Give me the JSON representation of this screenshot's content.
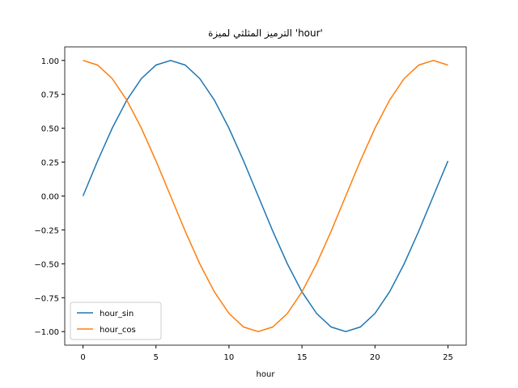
{
  "chart_data": {
    "type": "line",
    "title": "الترميز المثلثي لميزة 'hour'",
    "xlabel": "hour",
    "x": [
      0,
      1,
      2,
      3,
      4,
      5,
      6,
      7,
      8,
      9,
      10,
      11,
      12,
      13,
      14,
      15,
      16,
      17,
      18,
      19,
      20,
      21,
      22,
      23,
      24,
      25
    ],
    "series": [
      {
        "name": "hour_sin",
        "color": "#1f77b4",
        "values": [
          0,
          0.259,
          0.5,
          0.707,
          0.866,
          0.966,
          1,
          0.966,
          0.866,
          0.707,
          0.5,
          0.259,
          0,
          -0.259,
          -0.5,
          -0.707,
          -0.866,
          -0.966,
          -1,
          -0.966,
          -0.866,
          -0.707,
          -0.5,
          -0.259,
          0,
          0.259
        ]
      },
      {
        "name": "hour_cos",
        "color": "#ff7f0e",
        "values": [
          1,
          0.966,
          0.866,
          0.707,
          0.5,
          0.259,
          0,
          -0.259,
          -0.5,
          -0.707,
          -0.866,
          -0.966,
          -1,
          -0.966,
          -0.866,
          -0.707,
          -0.5,
          -0.259,
          0,
          0.259,
          0.5,
          0.707,
          0.866,
          0.966,
          1,
          0.966
        ]
      }
    ],
    "xlim": [
      -1.25,
      26.25
    ],
    "ylim": [
      -1.1,
      1.1
    ],
    "xticks": [
      0,
      5,
      10,
      15,
      20,
      25
    ],
    "yticks": [
      {
        "value": -1,
        "label": "−1.00"
      },
      {
        "value": -0.75,
        "label": "−0.75"
      },
      {
        "value": -0.5,
        "label": "−0.50"
      },
      {
        "value": -0.25,
        "label": "−0.25"
      },
      {
        "value": 0,
        "label": "0.00"
      },
      {
        "value": 0.25,
        "label": "0.25"
      },
      {
        "value": 0.5,
        "label": "0.50"
      },
      {
        "value": 0.75,
        "label": "0.75"
      },
      {
        "value": 1,
        "label": "1.00"
      }
    ],
    "legend": "lower left"
  }
}
